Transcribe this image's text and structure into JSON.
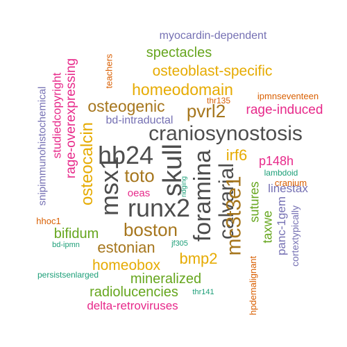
{
  "colors": {
    "dark_gray": "#4d4d4d",
    "brown": "#a6761d",
    "orange": "#d95f02",
    "magenta": "#e7298a",
    "green": "#66a61e",
    "purple": "#7570b3",
    "teal": "#1b9e77",
    "gold": "#e6ab02"
  },
  "words": [
    {
      "text": "craniosynostosis",
      "color": "#4d4d4d",
      "orientation": "horizontal"
    },
    {
      "text": "skull",
      "color": "#4d4d4d",
      "orientation": "vertical"
    },
    {
      "text": "hb24",
      "color": "#4d4d4d",
      "orientation": "horizontal"
    },
    {
      "text": "runx2",
      "color": "#4d4d4d",
      "orientation": "horizontal"
    },
    {
      "text": "msx1",
      "color": "#4d4d4d",
      "orientation": "vertical"
    },
    {
      "text": "foramina",
      "color": "#4d4d4d",
      "orientation": "vertical"
    },
    {
      "text": "calvarial",
      "color": "#4d4d4d",
      "orientation": "vertical"
    },
    {
      "text": "mc3t3e1",
      "color": "#a6761d",
      "orientation": "vertical"
    },
    {
      "text": "boston",
      "color": "#a6761d",
      "orientation": "horizontal"
    },
    {
      "text": "toto",
      "color": "#a6761d",
      "orientation": "horizontal"
    },
    {
      "text": "estonian",
      "color": "#a6761d",
      "orientation": "horizontal"
    },
    {
      "text": "osteogenic",
      "color": "#a6761d",
      "orientation": "horizontal"
    },
    {
      "text": "pvrl2",
      "color": "#a6761d",
      "orientation": "horizontal"
    },
    {
      "text": "homeodomain",
      "color": "#e6ab02",
      "orientation": "horizontal"
    },
    {
      "text": "osteoblast-specific",
      "color": "#e6ab02",
      "orientation": "horizontal"
    },
    {
      "text": "osteocalcin",
      "color": "#e6ab02",
      "orientation": "vertical"
    },
    {
      "text": "homeobox",
      "color": "#e6ab02",
      "orientation": "horizontal"
    },
    {
      "text": "bmp2",
      "color": "#e6ab02",
      "orientation": "horizontal"
    },
    {
      "text": "irf6",
      "color": "#e6ab02",
      "orientation": "horizontal"
    },
    {
      "text": "spectacles",
      "color": "#66a61e",
      "orientation": "horizontal"
    },
    {
      "text": "mineralized",
      "color": "#66a61e",
      "orientation": "horizontal"
    },
    {
      "text": "radiolucencies",
      "color": "#66a61e",
      "orientation": "horizontal"
    },
    {
      "text": "bifidum",
      "color": "#66a61e",
      "orientation": "horizontal"
    },
    {
      "text": "sutures",
      "color": "#66a61e",
      "orientation": "vertical"
    },
    {
      "text": "taxwe",
      "color": "#66a61e",
      "orientation": "vertical"
    },
    {
      "text": "myocardin-dependent",
      "color": "#7570b3",
      "orientation": "horizontal"
    },
    {
      "text": "bd-intraductal",
      "color": "#7570b3",
      "orientation": "horizontal"
    },
    {
      "text": "snipimmunohistochemical",
      "color": "#7570b3",
      "orientation": "vertical"
    },
    {
      "text": "linestax",
      "color": "#7570b3",
      "orientation": "horizontal"
    },
    {
      "text": "panc-1gem",
      "color": "#7570b3",
      "orientation": "vertical"
    },
    {
      "text": "cortextypically",
      "color": "#7570b3",
      "orientation": "vertical"
    },
    {
      "text": "rage-induced",
      "color": "#e7298a",
      "orientation": "horizontal"
    },
    {
      "text": "p148h",
      "color": "#e7298a",
      "orientation": "horizontal"
    },
    {
      "text": "rage-overexpressing",
      "color": "#e7298a",
      "orientation": "vertical"
    },
    {
      "text": "studiedcopyright",
      "color": "#e7298a",
      "orientation": "vertical"
    },
    {
      "text": "oeas",
      "color": "#e7298a",
      "orientation": "horizontal"
    },
    {
      "text": "delta-retroviruses",
      "color": "#e7298a",
      "orientation": "horizontal"
    },
    {
      "text": "teachers",
      "color": "#d95f02",
      "orientation": "vertical"
    },
    {
      "text": "ipmnseventeen",
      "color": "#d95f02",
      "orientation": "horizontal"
    },
    {
      "text": "thr135",
      "color": "#d95f02",
      "orientation": "horizontal"
    },
    {
      "text": "hhoc1",
      "color": "#d95f02",
      "orientation": "horizontal"
    },
    {
      "text": "cranium",
      "color": "#d95f02",
      "orientation": "horizontal"
    },
    {
      "text": "hpdemalignant",
      "color": "#d95f02",
      "orientation": "vertical"
    },
    {
      "text": "lambdoid",
      "color": "#1b9e77",
      "orientation": "horizontal"
    },
    {
      "text": "ridging",
      "color": "#1b9e77",
      "orientation": "vertical"
    },
    {
      "text": "jf305",
      "color": "#1b9e77",
      "orientation": "horizontal"
    },
    {
      "text": "bd-ipmn",
      "color": "#1b9e77",
      "orientation": "horizontal"
    },
    {
      "text": "persistsenlarged",
      "color": "#1b9e77",
      "orientation": "horizontal"
    },
    {
      "text": "thr141",
      "color": "#1b9e77",
      "orientation": "horizontal"
    }
  ]
}
